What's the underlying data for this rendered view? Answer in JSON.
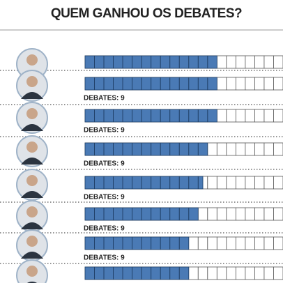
{
  "chart_data": {
    "type": "bar",
    "title": "QUEM GANHOU OS DEBATES?",
    "categories": [
      null,
      null,
      null,
      null,
      null,
      null,
      null,
      null
    ],
    "values": [
      14,
      14,
      14,
      13,
      12.5,
      12,
      11,
      11
    ],
    "color": "#4a7ab5",
    "xlim": [
      0,
      21
    ],
    "sublabels": [
      null,
      "DEBATES: 9",
      "DEBATES: 9",
      "DEBATES: 9",
      "DEBATES: 9",
      "DEBATES: 9",
      "DEBATES: 9",
      null
    ]
  }
}
